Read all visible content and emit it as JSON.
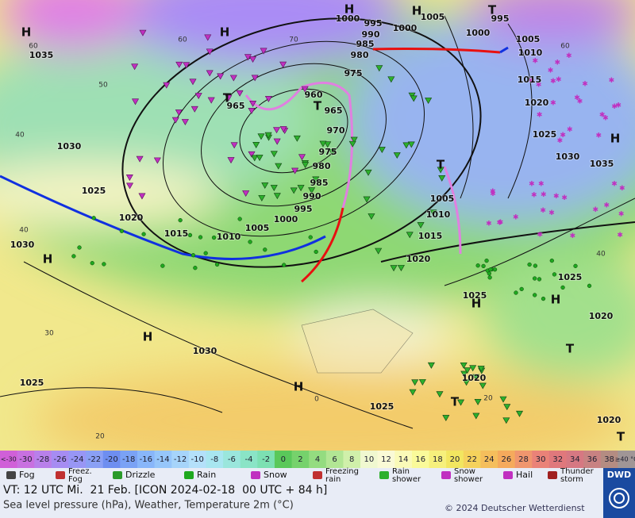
{
  "map": {
    "pressure_labels": [
      "1035",
      "1030",
      "1025",
      "1020",
      "1015",
      "1010",
      "1005",
      "1000",
      "995",
      "990",
      "985",
      "980",
      "975",
      "970",
      "965",
      "960",
      "965",
      "975",
      "985",
      "980",
      "990",
      "995",
      "1000",
      "1000",
      "1005",
      "1000",
      "995",
      "1005",
      "1010",
      "1015",
      "1020",
      "1025",
      "1030",
      "1035",
      "1005",
      "1010",
      "1015",
      "1020",
      "1025",
      "1025",
      "1020",
      "1030",
      "1025",
      "1030",
      "1020",
      "1025",
      "1020"
    ],
    "centers": [
      "H",
      "H",
      "H",
      "H",
      "T",
      "T",
      "T",
      "T",
      "H",
      "H",
      "H",
      "H",
      "T",
      "H",
      "H",
      "T",
      "T"
    ],
    "graticule_labels": [
      "60",
      "50",
      "40",
      "40",
      "30",
      "20",
      "70",
      "60",
      "0",
      "20",
      "40",
      "60"
    ]
  },
  "color_scale": {
    "labels": [
      "<-30",
      "-30",
      "-28",
      "-26",
      "-24",
      "-22",
      "-20",
      "-18",
      "-16",
      "-14",
      "-12",
      "-10",
      "-8",
      "-6",
      "-4",
      "-2",
      "0",
      "2",
      "4",
      "6",
      "8",
      "10",
      "12",
      "14",
      "16",
      "18",
      "20",
      "22",
      "24",
      "26",
      "28",
      "30",
      "32",
      "34",
      "36",
      "38",
      "≥40 °C"
    ],
    "colors": [
      "#d060d8",
      "#c870e0",
      "#b880ea",
      "#a68cf2",
      "#9896f5",
      "#8aa0f5",
      "#6e8ef0",
      "#7aa2f5",
      "#88b6fa",
      "#96c6fa",
      "#a6d4fa",
      "#b4e0fa",
      "#a8e6f0",
      "#9ae6dc",
      "#8ae4c6",
      "#7ce0b2",
      "#5ac85a",
      "#76d26c",
      "#94dc80",
      "#b2e694",
      "#d0f0aa",
      "#f0f8d0",
      "#fafad6",
      "#fafab8",
      "#fafa9a",
      "#f6f07c",
      "#f2e660",
      "#f5d25c",
      "#f5be5c",
      "#f5aa5c",
      "#f0966e",
      "#ea8278",
      "#e0787c",
      "#d67882",
      "#c88282",
      "#b48c82",
      "#a09696"
    ]
  },
  "weather_legend": [
    [
      "Fog"
    ],
    [
      "Freez.",
      "Fog"
    ],
    [
      "Drizzle"
    ],
    [
      "Rain"
    ],
    [
      "Snow"
    ],
    [
      "Freezing",
      "rain"
    ],
    [
      "Rain",
      "shower"
    ],
    [
      "Snow",
      "shower"
    ],
    [
      "Hail"
    ],
    [
      "Thunder",
      "storm"
    ]
  ],
  "footer": {
    "valid_time": "VT: 12 UTC Mi.  21 Feb. [ICON 2024-02-18  00 UTC + 84 h]",
    "description": "Sea level pressure (hPa), Weather, Temperature 2m (°C)",
    "copyright": "© 2024 Deutscher Wetterdienst",
    "logo": "DWD"
  }
}
